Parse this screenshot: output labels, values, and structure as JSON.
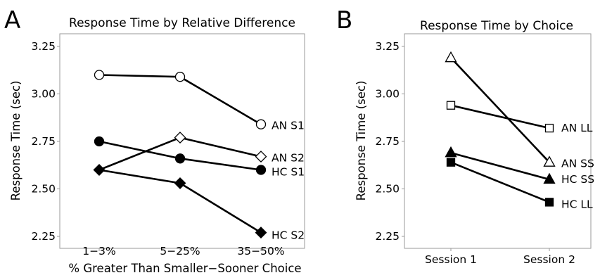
{
  "panels": [
    {
      "letter": "A",
      "title": "Response Time by Relative Difference",
      "ylabel": "Response Time (sec)",
      "xlabel": "% Greater Than Smaller−Sooner Choice",
      "yticks": [
        "2.25",
        "2.50",
        "2.75",
        "3.00",
        "3.25"
      ]
    },
    {
      "letter": "B",
      "title": "Response Time by Choice",
      "ylabel": "Response Time (sec)",
      "xlabel": "",
      "yticks": [
        "2.25",
        "2.50",
        "2.75",
        "3.00",
        "3.25"
      ]
    }
  ],
  "chart_data": [
    {
      "type": "line",
      "title": "Response Time by Relative Difference",
      "xlabel": "% Greater Than Smaller−Sooner Choice",
      "ylabel": "Response Time (sec)",
      "categories": [
        "1−3%",
        "5−25%",
        "35−50%"
      ],
      "ylim": [
        2.2,
        3.3
      ],
      "yticks": [
        2.25,
        2.5,
        2.75,
        3.0,
        3.25
      ],
      "grid": false,
      "legend": "labels at line ends",
      "series": [
        {
          "name": "AN S1",
          "values": [
            3.1,
            3.09,
            2.84
          ],
          "marker": "circle",
          "fill": "#ffffff"
        },
        {
          "name": "AN S2",
          "values": [
            2.6,
            2.77,
            2.67
          ],
          "marker": "diamond",
          "fill": "#ffffff"
        },
        {
          "name": "HC S1",
          "values": [
            2.75,
            2.66,
            2.6
          ],
          "marker": "circle",
          "fill": "#000000"
        },
        {
          "name": "HC S2",
          "values": [
            2.6,
            2.53,
            2.27
          ],
          "marker": "diamond",
          "fill": "#000000"
        }
      ]
    },
    {
      "type": "line",
      "title": "Response Time by Choice",
      "xlabel": "",
      "ylabel": "Response Time (sec)",
      "categories": [
        "Session 1",
        "Session 2"
      ],
      "ylim": [
        2.2,
        3.3
      ],
      "yticks": [
        2.25,
        2.5,
        2.75,
        3.0,
        3.25
      ],
      "grid": false,
      "legend": "labels at line ends",
      "series": [
        {
          "name": "AN LL",
          "values": [
            2.94,
            2.82
          ],
          "marker": "square",
          "fill": "#ffffff"
        },
        {
          "name": "AN SS",
          "values": [
            3.19,
            2.64
          ],
          "marker": "triangle",
          "fill": "#ffffff"
        },
        {
          "name": "HC SS",
          "values": [
            2.69,
            2.55
          ],
          "marker": "triangle",
          "fill": "#000000"
        },
        {
          "name": "HC LL",
          "values": [
            2.64,
            2.43
          ],
          "marker": "square",
          "fill": "#000000"
        }
      ]
    }
  ]
}
